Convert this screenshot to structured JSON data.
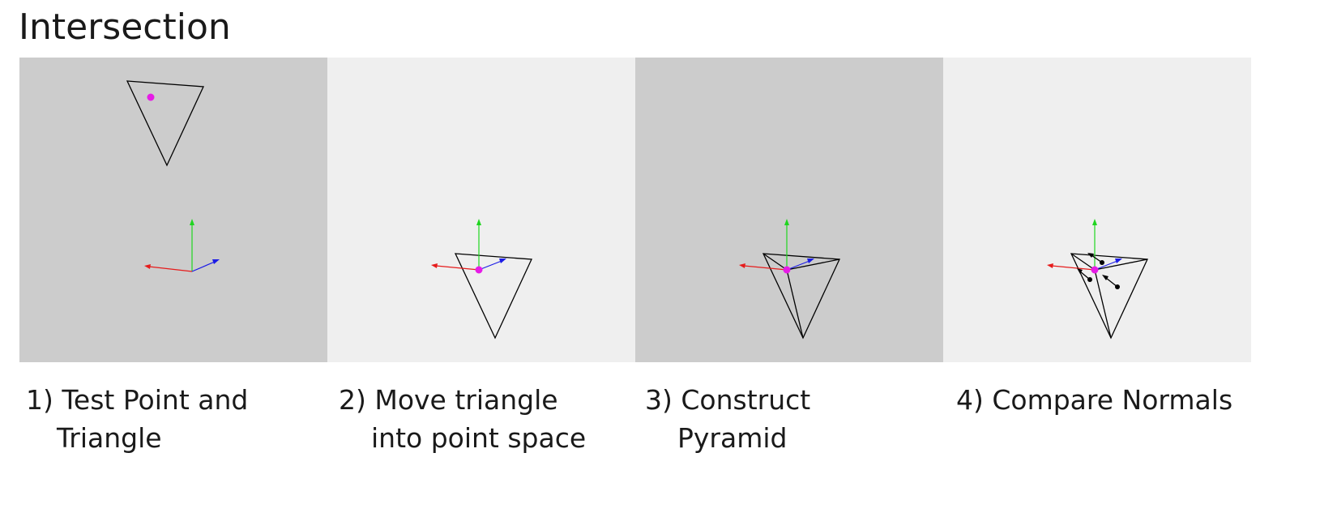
{
  "title": "Intersection",
  "colors": {
    "panel_dark": "#cccccc",
    "panel_light": "#efefef",
    "point": "#e61ce6",
    "axis_x": "#e61c1c",
    "axis_y": "#1fd51f",
    "axis_z": "#1c1ce6",
    "outline": "#000000"
  },
  "panels": [
    {
      "shade": "dark",
      "caption_line1": "1) Test Point and",
      "caption_line2": "Triangle"
    },
    {
      "shade": "light",
      "caption_line1": "2) Move triangle",
      "caption_line2": "into point space"
    },
    {
      "shade": "dark",
      "caption_line1": "3) Construct",
      "caption_line2": "Pyramid"
    },
    {
      "shade": "light",
      "caption_line1": "4) Compare Normals",
      "caption_line2": ""
    }
  ]
}
